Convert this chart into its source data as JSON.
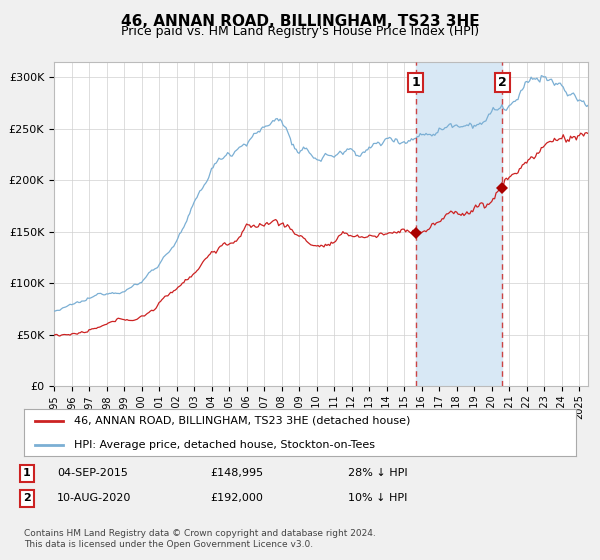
{
  "title": "46, ANNAN ROAD, BILLINGHAM, TS23 3HE",
  "subtitle": "Price paid vs. HM Land Registry's House Price Index (HPI)",
  "ylabel_ticks": [
    "£0",
    "£50K",
    "£100K",
    "£150K",
    "£200K",
    "£250K",
    "£300K"
  ],
  "ytick_vals": [
    0,
    50000,
    100000,
    150000,
    200000,
    250000,
    300000
  ],
  "ylim": [
    0,
    315000
  ],
  "hpi_line_color": "#7bafd4",
  "red_color": "#cc2222",
  "red_dark": "#aa0000",
  "bg_color": "#f0f0f0",
  "plot_bg": "#ffffff",
  "shaded_region_color": "#d8e8f5",
  "legend_label_red": "46, ANNAN ROAD, BILLINGHAM, TS23 3HE (detached house)",
  "legend_label_blue": "HPI: Average price, detached house, Stockton-on-Tees",
  "note1_num": "1",
  "note1_date": "04-SEP-2015",
  "note1_price": "£148,995",
  "note1_hpi": "28% ↓ HPI",
  "note2_num": "2",
  "note2_date": "10-AUG-2020",
  "note2_price": "£192,000",
  "note2_hpi": "10% ↓ HPI",
  "footer": "Contains HM Land Registry data © Crown copyright and database right 2024.\nThis data is licensed under the Open Government Licence v3.0.",
  "sale1_year": 2015.67,
  "sale1_price": 148995,
  "sale2_year": 2020.61,
  "sale2_price": 192000,
  "xmin": 1995.0,
  "xmax": 2025.5
}
